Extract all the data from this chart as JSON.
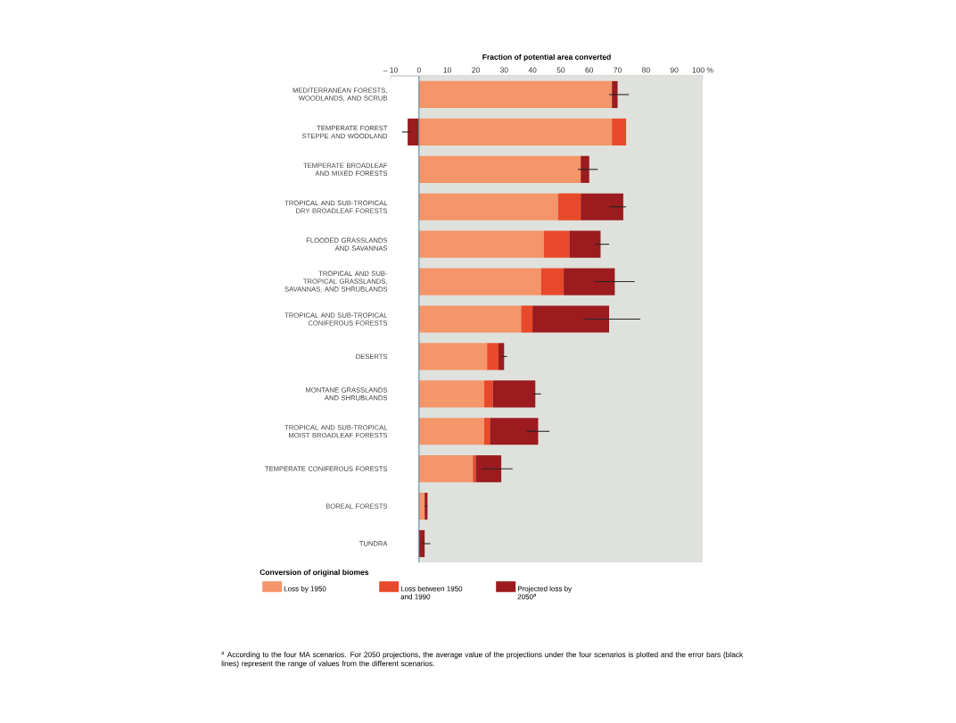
{
  "chart_data": {
    "type": "bar",
    "orientation": "horizontal",
    "stacked": true,
    "xlabel": "Fraction of potential area converted",
    "categories": [
      "MEDITERRANEAN FORESTS, WOODLANDS, AND SCRUB",
      "TEMPERATE FOREST STEPPE AND WOODLAND",
      "TEMPERATE BROADLEAF AND MIXED FORESTS",
      "TROPICAL AND SUB-TROPICAL DRY BROADLEAF FORESTS",
      "FLOODED GRASSLANDS AND SAVANNAS",
      "TROPICAL AND SUB-TROPICAL GRASSLANDS, SAVANNAS, AND SHRUBLANDS",
      "TROPICAL AND SUB-TROPICAL CONIFEROUS FORESTS",
      "DESERTS",
      "MONTANE GRASSLANDS AND SHRUBLANDS",
      "TROPICAL AND SUB-TROPICAL MOIST BROADLEAF FORESTS",
      "TEMPERATE CONIFEROUS FORESTS",
      "BOREAL FORESTS",
      "TUNDRA"
    ],
    "series": [
      {
        "name": "Loss by 1950",
        "color": "#f4956a",
        "values": [
          68,
          68,
          57,
          49,
          44,
          43,
          36,
          24,
          23,
          23,
          19,
          2,
          0
        ]
      },
      {
        "name": "Loss between 1950 and 1990",
        "color": "#e9492b",
        "values": [
          0,
          5,
          0,
          8,
          9,
          8,
          4,
          4,
          3,
          2,
          1,
          0,
          0
        ]
      },
      {
        "name": "Projected loss by 2050$^{a}$",
        "color": "#9b1b1e",
        "values": [
          2,
          -4,
          3,
          15,
          11,
          18,
          27,
          2,
          15,
          17,
          9,
          1,
          2
        ],
        "errors": [
          [
            67,
            74
          ],
          [
            -6,
            -3
          ],
          [
            56,
            63
          ],
          [
            67,
            73
          ],
          [
            62,
            67
          ],
          [
            62,
            76
          ],
          [
            58,
            78
          ],
          [
            29,
            31
          ],
          [
            40,
            43
          ],
          [
            38,
            46
          ],
          [
            22,
            33
          ],
          [
            2,
            3
          ],
          [
            1,
            4
          ]
        ]
      }
    ],
    "xlim": [
      -10,
      100
    ],
    "xticks": [
      {
        "value": -10,
        "label": "– 10"
      },
      0,
      10,
      20,
      30,
      40,
      50,
      60,
      70,
      80,
      90,
      {
        "value": 100,
        "label": "100 %"
      }
    ],
    "bands": [
      {
        "axis": "x",
        "from": 0,
        "to": 100,
        "color": "#dfe1dc"
      }
    ],
    "ref_lines": [
      {
        "axis": "x",
        "value": 0,
        "color": "#5b8fa8"
      }
    ],
    "legend": "bottom",
    "legend_title": "Conversion of original biomes",
    "annotations": [
      "$^{a}$ According to the four MA scenarios. For 2050 projections, the average value of the projections under the four scenarios is plotted and the error bars (black lines) represent the range of values from the different scenarios."
    ]
  }
}
